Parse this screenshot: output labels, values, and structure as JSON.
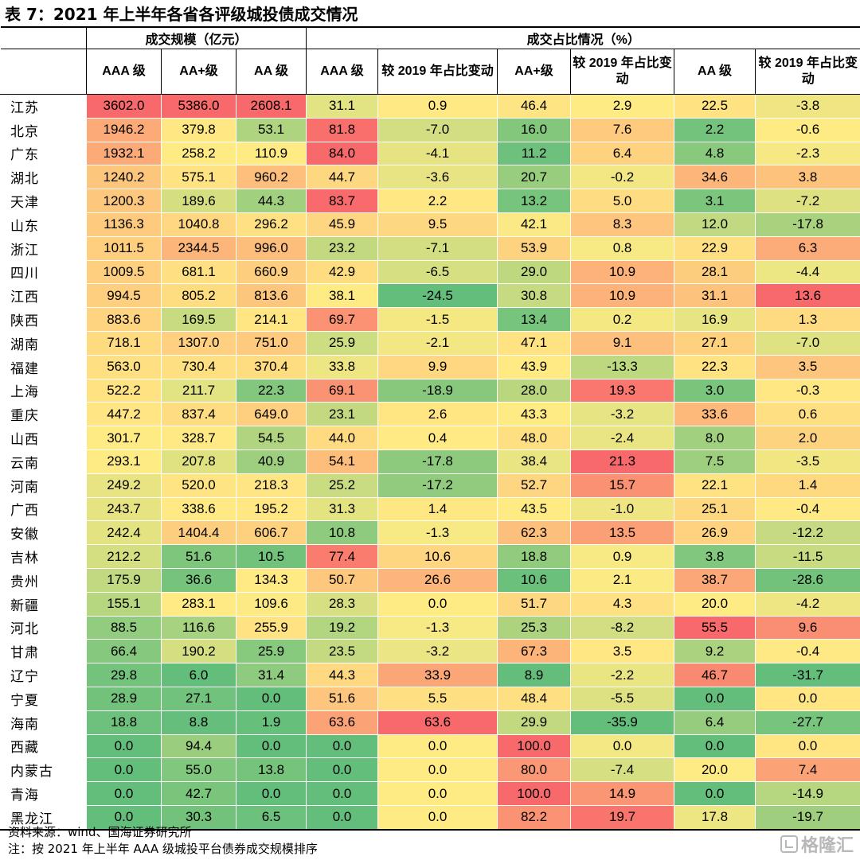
{
  "title": "表 7：2021 年上半年各省各评级城投债成交情况",
  "header": {
    "group_scale": "成交规模（亿元）",
    "group_share": "成交占比情况（%）",
    "columns": [
      "AAA 级",
      "AA+级",
      "AA 级",
      "AAA 级",
      "较 2019 年占比变动",
      "AA+级",
      "较 2019 年占比变动",
      "AA 级",
      "较 2019 年占比变动"
    ]
  },
  "rows": [
    {
      "province": "江苏",
      "values": [
        "3602.0",
        "5386.0",
        "2608.1",
        "31.1",
        "0.9",
        "46.4",
        "2.9",
        "22.5",
        "-3.8"
      ]
    },
    {
      "province": "北京",
      "values": [
        "1946.2",
        "379.8",
        "53.1",
        "81.8",
        "-7.0",
        "16.0",
        "7.6",
        "2.2",
        "-0.6"
      ]
    },
    {
      "province": "广东",
      "values": [
        "1932.1",
        "258.2",
        "110.9",
        "84.0",
        "-4.1",
        "11.2",
        "6.4",
        "4.8",
        "-2.3"
      ]
    },
    {
      "province": "湖北",
      "values": [
        "1240.2",
        "575.1",
        "960.2",
        "44.7",
        "-3.6",
        "20.7",
        "-0.2",
        "34.6",
        "3.8"
      ]
    },
    {
      "province": "天津",
      "values": [
        "1200.3",
        "189.6",
        "44.3",
        "83.7",
        "2.2",
        "13.2",
        "5.0",
        "3.1",
        "-7.2"
      ]
    },
    {
      "province": "山东",
      "values": [
        "1136.3",
        "1040.8",
        "296.2",
        "45.9",
        "9.5",
        "42.1",
        "8.3",
        "12.0",
        "-17.8"
      ]
    },
    {
      "province": "浙江",
      "values": [
        "1011.5",
        "2344.5",
        "996.0",
        "23.2",
        "-7.1",
        "53.9",
        "0.8",
        "22.9",
        "6.3"
      ]
    },
    {
      "province": "四川",
      "values": [
        "1009.5",
        "681.1",
        "660.9",
        "42.9",
        "-6.5",
        "29.0",
        "10.9",
        "28.1",
        "-4.4"
      ]
    },
    {
      "province": "江西",
      "values": [
        "994.5",
        "805.2",
        "813.6",
        "38.1",
        "-24.5",
        "30.8",
        "10.9",
        "31.1",
        "13.6"
      ]
    },
    {
      "province": "陕西",
      "values": [
        "883.6",
        "169.5",
        "214.1",
        "69.7",
        "-1.5",
        "13.4",
        "0.2",
        "16.9",
        "1.3"
      ]
    },
    {
      "province": "湖南",
      "values": [
        "718.1",
        "1307.0",
        "751.0",
        "25.9",
        "-2.1",
        "47.1",
        "9.1",
        "27.1",
        "-7.0"
      ]
    },
    {
      "province": "福建",
      "values": [
        "563.0",
        "730.4",
        "370.4",
        "33.8",
        "9.9",
        "43.9",
        "-13.3",
        "22.3",
        "3.5"
      ]
    },
    {
      "province": "上海",
      "values": [
        "522.2",
        "211.7",
        "22.3",
        "69.1",
        "-18.9",
        "28.0",
        "19.3",
        "3.0",
        "-0.3"
      ]
    },
    {
      "province": "重庆",
      "values": [
        "447.2",
        "837.4",
        "649.0",
        "23.1",
        "2.6",
        "43.3",
        "-3.2",
        "33.6",
        "0.6"
      ]
    },
    {
      "province": "山西",
      "values": [
        "301.7",
        "328.7",
        "54.5",
        "44.0",
        "0.4",
        "48.0",
        "-2.4",
        "8.0",
        "2.0"
      ]
    },
    {
      "province": "云南",
      "values": [
        "293.1",
        "207.8",
        "40.9",
        "54.1",
        "-17.8",
        "38.4",
        "21.3",
        "7.5",
        "-3.5"
      ]
    },
    {
      "province": "河南",
      "values": [
        "249.2",
        "520.0",
        "218.3",
        "25.2",
        "-17.2",
        "52.7",
        "15.7",
        "22.1",
        "1.4"
      ]
    },
    {
      "province": "广西",
      "values": [
        "243.7",
        "338.6",
        "195.2",
        "31.3",
        "1.4",
        "43.5",
        "-1.0",
        "25.1",
        "-0.4"
      ]
    },
    {
      "province": "安徽",
      "values": [
        "242.4",
        "1404.4",
        "606.7",
        "10.8",
        "-1.3",
        "62.3",
        "13.5",
        "26.9",
        "-12.2"
      ]
    },
    {
      "province": "吉林",
      "values": [
        "212.2",
        "51.6",
        "10.5",
        "77.4",
        "10.6",
        "18.8",
        "0.9",
        "3.8",
        "-11.5"
      ]
    },
    {
      "province": "贵州",
      "values": [
        "175.9",
        "36.6",
        "134.3",
        "50.7",
        "26.6",
        "10.6",
        "2.1",
        "38.7",
        "-28.6"
      ]
    },
    {
      "province": "新疆",
      "values": [
        "155.1",
        "283.1",
        "109.6",
        "28.3",
        "0.0",
        "51.7",
        "4.3",
        "20.0",
        "-4.2"
      ]
    },
    {
      "province": "河北",
      "values": [
        "88.5",
        "116.6",
        "255.9",
        "19.2",
        "-1.3",
        "25.3",
        "-8.2",
        "55.5",
        "9.6"
      ]
    },
    {
      "province": "甘肃",
      "values": [
        "66.4",
        "190.2",
        "25.9",
        "23.5",
        "-3.2",
        "67.3",
        "3.5",
        "9.2",
        "-0.4"
      ]
    },
    {
      "province": "辽宁",
      "values": [
        "29.8",
        "6.0",
        "31.4",
        "44.3",
        "33.9",
        "8.9",
        "-2.2",
        "46.7",
        "-31.7"
      ]
    },
    {
      "province": "宁夏",
      "values": [
        "28.9",
        "27.1",
        "0.0",
        "51.6",
        "5.5",
        "48.4",
        "-5.5",
        "0.0",
        "0.0"
      ]
    },
    {
      "province": "海南",
      "values": [
        "18.8",
        "8.8",
        "1.9",
        "63.6",
        "63.6",
        "29.9",
        "-35.9",
        "6.4",
        "-27.7"
      ]
    },
    {
      "province": "西藏",
      "values": [
        "0.0",
        "94.4",
        "0.0",
        "0.0",
        "0.0",
        "100.0",
        "0.0",
        "0.0",
        "0.0"
      ]
    },
    {
      "province": "内蒙古",
      "values": [
        "0.0",
        "55.0",
        "13.8",
        "0.0",
        "0.0",
        "80.0",
        "-7.4",
        "20.0",
        "7.4"
      ]
    },
    {
      "province": "青海",
      "values": [
        "0.0",
        "42.7",
        "0.0",
        "0.0",
        "0.0",
        "100.0",
        "14.9",
        "0.0",
        "-14.9"
      ]
    },
    {
      "province": "黑龙江",
      "values": [
        "0.0",
        "30.3",
        "6.5",
        "0.0",
        "0.0",
        "82.2",
        "19.7",
        "17.8",
        "-19.7"
      ]
    }
  ],
  "heatmap_colors": {
    "low": "#63be7b",
    "mid": "#ffeb84",
    "high": "#f8696b"
  },
  "notes": {
    "source": "资料来源：wind、国海证券研究所",
    "note": "注：按 2021 年上半年 AAA 级城投平台债券成交规模排序"
  },
  "watermark": {
    "text": "格隆汇",
    "icon": "gelonghui-logo-icon"
  }
}
